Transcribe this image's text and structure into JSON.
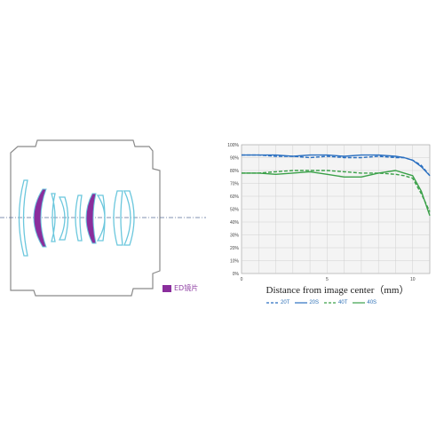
{
  "lens_diagram": {
    "ed_label": "ED镜片",
    "ed_color": "#8a2e9c",
    "element_color": "#6bc7dd",
    "barrel_color": "#8a8a8a"
  },
  "chart_data": {
    "type": "line",
    "x": [
      0,
      1,
      2,
      3,
      4,
      5,
      6,
      7,
      8,
      9,
      9.5,
      10,
      10.5,
      11
    ],
    "xticks": [
      "0",
      "5",
      "10"
    ],
    "yticks": [
      "0%",
      "10%",
      "20%",
      "30%",
      "40%",
      "50%",
      "60%",
      "70%",
      "80%",
      "90%",
      "100%"
    ],
    "xlabel": "Distance from image center（mm）",
    "ylabel": "",
    "xlim": [
      0,
      11
    ],
    "ylim": [
      0,
      100
    ],
    "grid": true,
    "series": [
      {
        "name": "20T",
        "color": "#2a6fc0",
        "dash": "4,2",
        "values": [
          92,
          92,
          91,
          91,
          90,
          91,
          90,
          90,
          91,
          90,
          90,
          88,
          84,
          76
        ]
      },
      {
        "name": "20S",
        "color": "#2a6fc0",
        "dash": "",
        "values": [
          92,
          92,
          92,
          91,
          92,
          92,
          91,
          92,
          92,
          91,
          90,
          88,
          83,
          76
        ]
      },
      {
        "name": "40T",
        "color": "#3aa048",
        "dash": "4,2",
        "values": [
          78,
          78,
          79,
          80,
          80,
          80,
          79,
          78,
          78,
          77,
          76,
          74,
          62,
          48
        ]
      },
      {
        "name": "40S",
        "color": "#3aa048",
        "dash": "",
        "values": [
          78,
          78,
          77,
          78,
          79,
          77,
          75,
          75,
          78,
          80,
          78,
          76,
          64,
          45
        ]
      }
    ]
  }
}
